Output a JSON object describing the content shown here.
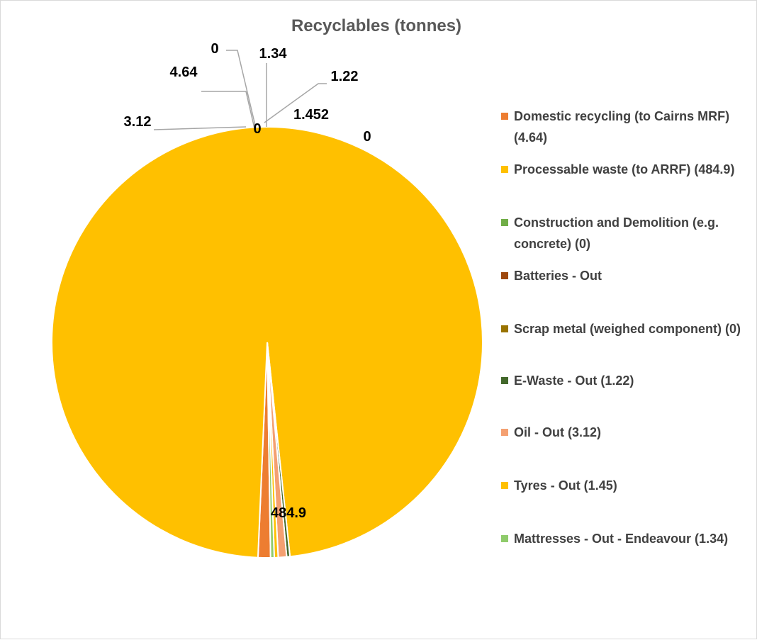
{
  "chart_data": {
    "type": "pie",
    "title": "Recyclables (tonnes)",
    "series": [
      {
        "name": "Recyclables (tonnes)",
        "slices": [
          {
            "legend": "Domestic recycling (to Cairns MRF) (4.64)",
            "value": 4.64,
            "label": "4.64",
            "color": "#ED7D31"
          },
          {
            "legend": "Processable waste (to ARRF) (484.9)",
            "value": 484.9,
            "label": "484.9",
            "color": "#FFC000"
          },
          {
            "legend": "Construction and Demolition (e.g. concrete) (0)",
            "value": 0,
            "label": "0",
            "color": "#70AD47"
          },
          {
            "legend": "Batteries - Out",
            "value": 0,
            "label": "0",
            "color": "#9E480E"
          },
          {
            "legend": "Scrap metal (weighed component) (0)",
            "value": 0,
            "label": "0",
            "color": "#997300"
          },
          {
            "legend": "E-Waste - Out (1.22)",
            "value": 1.22,
            "label": "1.22",
            "color": "#43682B"
          },
          {
            "legend": "Oil - Out (3.12)",
            "value": 3.12,
            "label": "3.12",
            "color": "#F4A071"
          },
          {
            "legend": "Tyres - Out (1.45)",
            "value": 1.452,
            "label": "1.452",
            "color": "#FFC000"
          },
          {
            "legend": "Mattresses - Out - Endeavour (1.34)",
            "value": 1.34,
            "label": "1.34",
            "color": "#8FCB6B"
          }
        ]
      }
    ],
    "legend_position": "right",
    "slice_separator_color": "#ffffff",
    "leader_line_color": "#a6a6a6"
  }
}
